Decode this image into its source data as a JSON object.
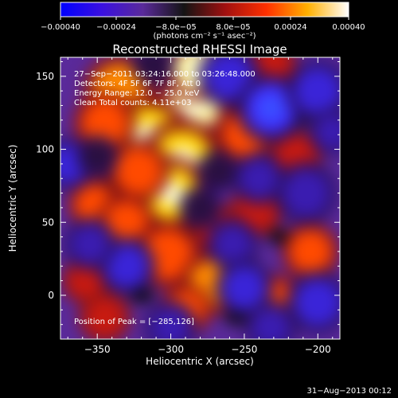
{
  "chart_data": {
    "type": "heatmap",
    "title": "Reconstructed RHESSI Image",
    "xlabel": "Heliocentric X (arcsec)",
    "ylabel": "Heliocentric Y (arcsec)",
    "xlim": [
      -375,
      -185
    ],
    "ylim": [
      -30,
      163
    ],
    "x_ticks": [
      -350,
      -300,
      -250,
      -200
    ],
    "x_tick_labels": [
      "−350",
      "−300",
      "−250",
      "−200"
    ],
    "y_ticks": [
      0,
      50,
      100,
      150
    ],
    "y_tick_labels": [
      "0",
      "50",
      "100",
      "150"
    ],
    "colorbar": {
      "range": [
        -0.0004,
        0.0004
      ],
      "tick_labels": [
        "−0.00040",
        "−0.00024",
        "−8.0e−05",
        "8.0e−05",
        "0.00024",
        "0.00040"
      ],
      "unit_label": "(photons cm⁻² s⁻¹ asec⁻²)",
      "colors": [
        "#0000ff",
        "#3a10e0",
        "#5a2a9a",
        "#141414",
        "#a01010",
        "#ff3000",
        "#ffb000",
        "#ffffff"
      ]
    },
    "annotations": [
      "27−Sep−2011 03:24:16.000 to 03:26:48.000",
      "Detectors: 4F 5F 6F 7F 8F, Att 0",
      "Energy Range: 12.0 − 25.0 keV",
      "Clean     Total counts: 4.11e+03"
    ],
    "peak_label": "Position of Peak = [−285,126]",
    "sources": [
      {
        "x": -285,
        "y": 130,
        "amp": 1.0,
        "w": 14
      },
      {
        "x": -282,
        "y": 155,
        "amp": 0.9,
        "w": 12
      },
      {
        "x": -335,
        "y": 140,
        "amp": 0.7,
        "w": 14
      },
      {
        "x": -315,
        "y": 108,
        "amp": 0.75,
        "w": 16
      },
      {
        "x": -292,
        "y": 92,
        "amp": 0.8,
        "w": 16
      },
      {
        "x": -300,
        "y": 70,
        "amp": 0.85,
        "w": 14
      },
      {
        "x": -322,
        "y": 85,
        "amp": 0.5,
        "w": 12
      },
      {
        "x": -345,
        "y": 118,
        "amp": 0.55,
        "w": 12
      },
      {
        "x": -352,
        "y": 62,
        "amp": 0.45,
        "w": 10
      },
      {
        "x": -330,
        "y": 50,
        "amp": 0.45,
        "w": 11
      },
      {
        "x": -302,
        "y": 28,
        "amp": 0.55,
        "w": 13
      },
      {
        "x": -272,
        "y": 8,
        "amp": 0.6,
        "w": 12
      },
      {
        "x": -268,
        "y": 45,
        "amp": 0.35,
        "w": 10
      },
      {
        "x": -250,
        "y": 110,
        "amp": 0.45,
        "w": 11
      },
      {
        "x": -242,
        "y": 58,
        "amp": 0.4,
        "w": 10
      },
      {
        "x": -232,
        "y": 158,
        "amp": 0.4,
        "w": 10
      },
      {
        "x": -215,
        "y": 95,
        "amp": 0.35,
        "w": 10
      },
      {
        "x": -205,
        "y": 30,
        "amp": 0.5,
        "w": 11
      },
      {
        "x": -230,
        "y": -5,
        "amp": 0.45,
        "w": 11
      },
      {
        "x": -290,
        "y": -10,
        "amp": 0.45,
        "w": 10
      },
      {
        "x": -345,
        "y": -15,
        "amp": 0.35,
        "w": 10
      },
      {
        "x": -358,
        "y": 10,
        "amp": 0.3,
        "w": 9
      },
      {
        "x": -260,
        "y": 150,
        "amp": -0.7,
        "w": 12
      },
      {
        "x": -232,
        "y": 128,
        "amp": -0.8,
        "w": 13
      },
      {
        "x": -200,
        "y": 140,
        "amp": -0.7,
        "w": 12
      },
      {
        "x": -208,
        "y": 70,
        "amp": -0.55,
        "w": 12
      },
      {
        "x": -240,
        "y": 80,
        "amp": -0.5,
        "w": 10
      },
      {
        "x": -258,
        "y": 35,
        "amp": -0.45,
        "w": 10
      },
      {
        "x": -250,
        "y": 5,
        "amp": -0.6,
        "w": 11
      },
      {
        "x": -200,
        "y": -5,
        "amp": -0.65,
        "w": 12
      },
      {
        "x": -232,
        "y": -22,
        "amp": -0.55,
        "w": 10
      },
      {
        "x": -330,
        "y": 20,
        "amp": -0.6,
        "w": 11
      },
      {
        "x": -355,
        "y": 35,
        "amp": -0.55,
        "w": 10
      },
      {
        "x": -370,
        "y": 90,
        "amp": -0.6,
        "w": 10
      },
      {
        "x": -350,
        "y": 95,
        "amp": -0.4,
        "w": 8
      },
      {
        "x": -300,
        "y": -22,
        "amp": -0.5,
        "w": 10
      },
      {
        "x": -268,
        "y": 85,
        "amp": -0.35,
        "w": 8
      },
      {
        "x": -312,
        "y": 158,
        "amp": -0.3,
        "w": 8
      },
      {
        "x": -190,
        "y": 112,
        "amp": -0.45,
        "w": 9
      },
      {
        "x": -280,
        "y": 60,
        "amp": -0.3,
        "w": 8
      }
    ]
  },
  "footer": {
    "timestamp": "31−Aug−2013 00:12"
  }
}
